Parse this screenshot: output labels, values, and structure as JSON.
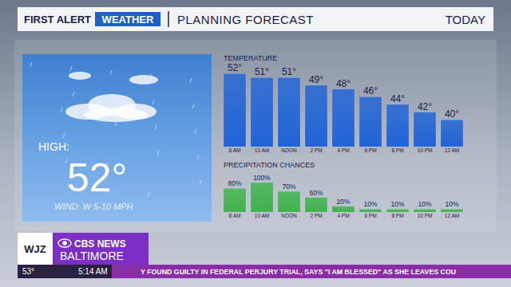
{
  "header": {
    "brand": "FIRST ALERT",
    "brand_box": "WEATHER",
    "title": "PLANNING FORECAST",
    "period": "TODAY"
  },
  "panel": {
    "high_label": "HIGH:",
    "high": "52°",
    "wind": "WIND: W 5-10 MPH"
  },
  "chart_data": [
    {
      "type": "bar",
      "title": "TEMPERATURE",
      "categories": [
        "8 AM",
        "10 AM",
        "NOON",
        "2 PM",
        "4 PM",
        "6 PM",
        "8 PM",
        "10 PM",
        "12 AM"
      ],
      "values": [
        52,
        51,
        51,
        49,
        48,
        46,
        44,
        42,
        40
      ],
      "value_labels": [
        "52°",
        "51°",
        "51°",
        "49°",
        "48°",
        "46°",
        "44°",
        "42°",
        "40°"
      ],
      "color": "#1f63d6",
      "ylim": [
        33,
        55
      ],
      "data_labels": true,
      "tick_labels": "x",
      "grid": false
    },
    {
      "type": "bar",
      "title": "PRECIPITATION CHANCES",
      "categories": [
        "8 AM",
        "10 AM",
        "NOON",
        "2 PM",
        "4 PM",
        "6 PM",
        "8 PM",
        "10 PM",
        "12 AM"
      ],
      "values": [
        80,
        100,
        70,
        50,
        20,
        10,
        10,
        10,
        10
      ],
      "value_labels": [
        "80%",
        "100%",
        "70%",
        "50%",
        "20%",
        "10%",
        "10%",
        "10%",
        "10%"
      ],
      "color": "#3db34a",
      "ylim": [
        0,
        100
      ],
      "data_labels": true,
      "tick_labels": "x",
      "grid": false
    }
  ],
  "footer": {
    "station": "WJZ",
    "network": "CBS NEWS",
    "city": "BALTIMORE",
    "temperature": "53°",
    "time": "5:14 AM",
    "ticker": "Y FOUND GUILTY IN FEDERAL PERJURY TRIAL, SAYS \"I AM BLESSED\" AS SHE LEAVES COU"
  }
}
